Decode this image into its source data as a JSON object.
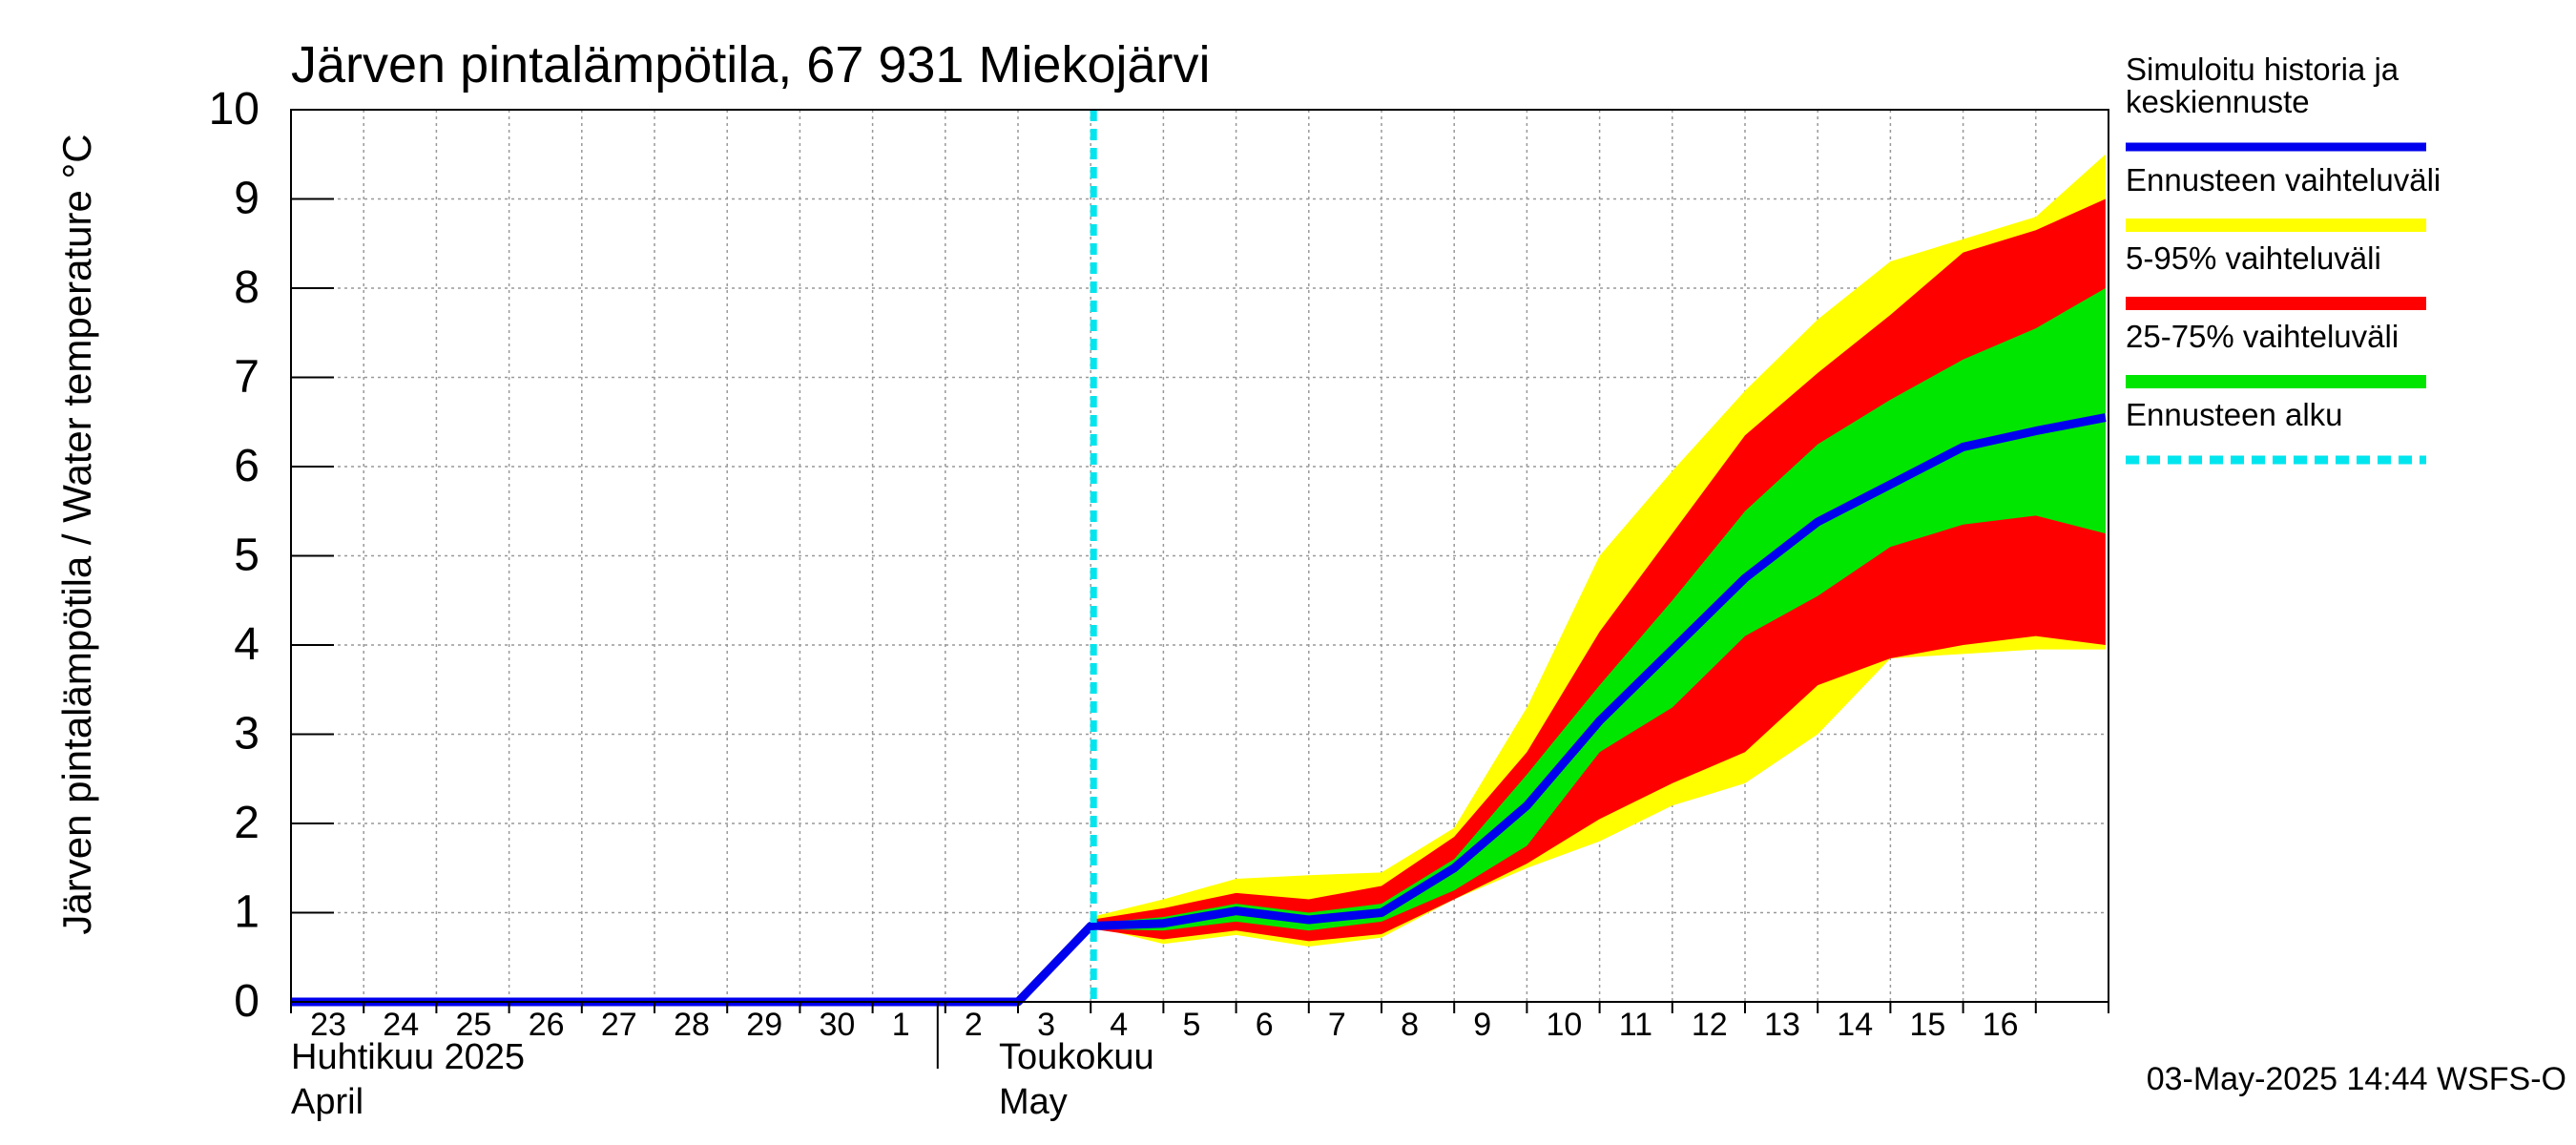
{
  "chart_data": {
    "type": "area",
    "title": "Järven pintalämpötila, 67 931 Miekojärvi",
    "ylabel": "Järven pintalämpötila / Water temperature °C",
    "xlabel": "",
    "ylim": [
      0,
      10
    ],
    "y_ticks": [
      "0",
      "1",
      "2",
      "3",
      "4",
      "5",
      "6",
      "7",
      "8",
      "9",
      "10"
    ],
    "x_ticks": [
      "23",
      "24",
      "25",
      "26",
      "27",
      "28",
      "29",
      "30",
      "1",
      "2",
      "3",
      "4",
      "5",
      "6",
      "7",
      "8",
      "9",
      "10",
      "11",
      "12",
      "13",
      "14",
      "15",
      "16"
    ],
    "month_labels": [
      {
        "line1": "Huhtikuu  2025",
        "line2": "April"
      },
      {
        "line1": "Toukokuu",
        "line2": "May"
      }
    ],
    "grid": true,
    "legend_position": "right",
    "forecast_start": "2025-05-03",
    "x_dates": [
      "2025-04-22",
      "2025-04-23",
      "2025-04-24",
      "2025-04-25",
      "2025-04-26",
      "2025-04-27",
      "2025-04-28",
      "2025-04-29",
      "2025-04-30",
      "2025-05-01",
      "2025-05-02",
      "2025-05-03",
      "2025-05-04",
      "2025-05-05",
      "2025-05-06",
      "2025-05-07",
      "2025-05-08",
      "2025-05-09",
      "2025-05-10",
      "2025-05-11",
      "2025-05-12",
      "2025-05-13",
      "2025-05-14",
      "2025-05-15",
      "2025-05-16"
    ],
    "bands": {
      "x_dates": [
        "2025-05-03",
        "2025-05-04",
        "2025-05-05",
        "2025-05-06",
        "2025-05-07",
        "2025-05-08",
        "2025-05-09",
        "2025-05-10",
        "2025-05-11",
        "2025-05-12",
        "2025-05-13",
        "2025-05-14",
        "2025-05-15",
        "2025-05-16",
        "2025-05-16T23:00"
      ],
      "range_low": [
        0.85,
        0.65,
        0.75,
        0.62,
        0.72,
        1.15,
        1.5,
        1.8,
        2.2,
        2.45,
        3.0,
        3.85,
        3.9,
        3.95,
        3.95
      ],
      "range_high": [
        0.95,
        1.15,
        1.38,
        1.42,
        1.45,
        1.95,
        3.3,
        5.0,
        5.95,
        6.85,
        7.65,
        8.3,
        8.55,
        8.8,
        9.5
      ],
      "p5": [
        0.82,
        0.7,
        0.8,
        0.68,
        0.76,
        1.15,
        1.55,
        2.05,
        2.45,
        2.8,
        3.55,
        3.85,
        4.0,
        4.1,
        4.0
      ],
      "p95": [
        0.92,
        1.05,
        1.22,
        1.15,
        1.3,
        1.85,
        2.8,
        4.15,
        5.25,
        6.35,
        7.05,
        7.7,
        8.4,
        8.65,
        9.0
      ],
      "p25": [
        0.82,
        0.8,
        0.9,
        0.8,
        0.9,
        1.25,
        1.75,
        2.8,
        3.3,
        4.1,
        4.55,
        5.1,
        5.35,
        5.45,
        5.25
      ],
      "p75": [
        0.88,
        0.95,
        1.1,
        1.0,
        1.1,
        1.6,
        2.55,
        3.55,
        4.5,
        5.5,
        6.25,
        6.75,
        7.2,
        7.55,
        8.0
      ]
    },
    "series": [
      {
        "name": "Simuloitu historia ja keskiennuste",
        "values": [
          0,
          0,
          0,
          0,
          0,
          0,
          0,
          0,
          0,
          0,
          0,
          0.85,
          0.88,
          1.02,
          0.92,
          1.0,
          1.5,
          2.2,
          3.15,
          3.95,
          4.75,
          5.38,
          5.8,
          6.22,
          6.4
        ]
      }
    ],
    "forecast_end_date": "2025-05-16T23:00",
    "forecast_end_value": 6.55,
    "legend": [
      {
        "label_lines": [
          "Simuloitu historia ja",
          "keskiennuste"
        ],
        "color": "#0000ee",
        "style": "line"
      },
      {
        "label_lines": [
          "Ennusteen vaihteluväli"
        ],
        "color": "#ffff00",
        "style": "band"
      },
      {
        "label_lines": [
          "5-95% vaihteluväli"
        ],
        "color": "#ff0000",
        "style": "band"
      },
      {
        "label_lines": [
          "25-75% vaihteluväli"
        ],
        "color": "#00e600",
        "style": "band"
      },
      {
        "label_lines": [
          "Ennusteen alku"
        ],
        "color": "#00e5ee",
        "style": "dashed"
      }
    ],
    "footer": "03-May-2025 14:44 WSFS-O",
    "colors": {
      "mean": "#0000ee",
      "range": "#ffff00",
      "p5_95": "#ff0000",
      "p25_75": "#00e600",
      "forecast_start": "#00e5ee",
      "grid": "#999999",
      "axis": "#000000"
    }
  }
}
